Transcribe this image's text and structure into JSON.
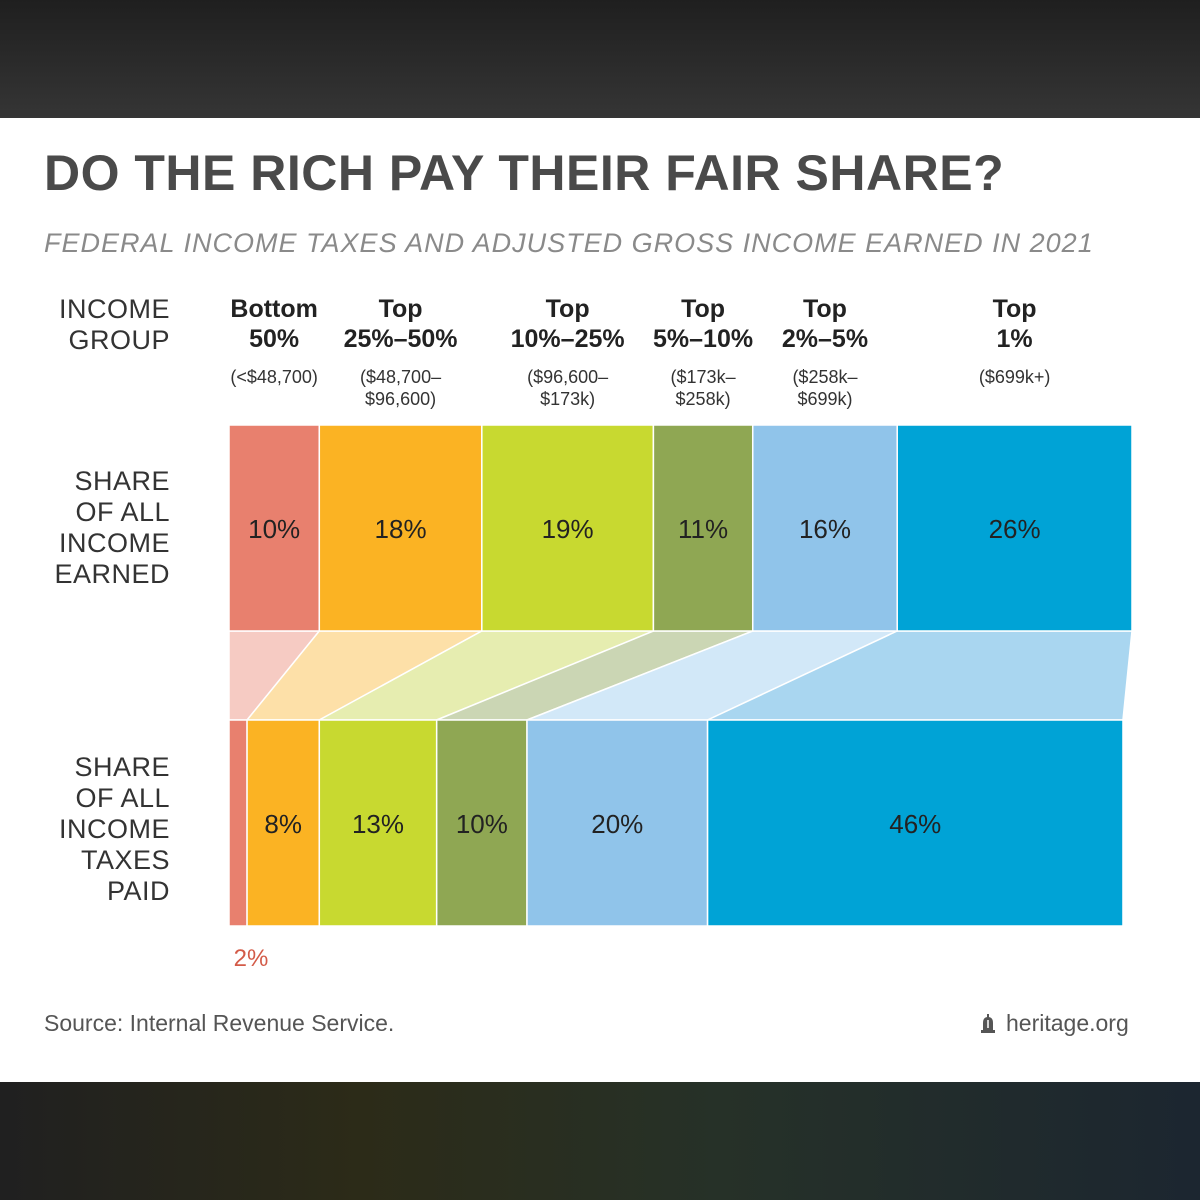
{
  "title": "DO THE RICH PAY THEIR FAIR SHARE?",
  "subtitle": "FEDERAL INCOME TAXES AND ADJUSTED GROSS INCOME EARNED IN 2021",
  "income_group_label": "INCOME\nGROUP",
  "row_income_label": "SHARE\nOF ALL\nINCOME\nEARNED",
  "row_taxes_label": "SHARE\nOF ALL\nINCOME\nTAXES\nPAID",
  "source": "Source: Internal Revenue Service.",
  "brand": "heritage.org",
  "chart_data": {
    "type": "bar",
    "stacked": true,
    "orientation": "horizontal",
    "categories": [
      "Bottom 50%",
      "Top 25%–50%",
      "Top 10%–25%",
      "Top 5%–10%",
      "Top 2%–5%",
      "Top 1%"
    ],
    "group_names": [
      "Bottom\n50%",
      "Top\n25%–50%",
      "Top\n10%–25%",
      "Top\n5%–10%",
      "Top\n2%–5%",
      "Top\n1%"
    ],
    "group_ranges": [
      "(<$48,700)",
      "($48,700–\n$96,600)",
      "($96,600–\n$173k)",
      "($173k–\n$258k)",
      "($258k–\n$699k)",
      "($699k+)"
    ],
    "colors": [
      "#e8806e",
      "#fbb323",
      "#c8d930",
      "#8fa753",
      "#90c4ea",
      "#00a3d6"
    ],
    "light_colors": [
      "#f6cbc3",
      "#fde0a8",
      "#e6edb0",
      "#cbd6b4",
      "#d2e8f8",
      "#a9d6f0"
    ],
    "series": [
      {
        "name": "Share of all income earned",
        "values": [
          10,
          18,
          19,
          11,
          16,
          26
        ],
        "labels": [
          "10%",
          "18%",
          "19%",
          "11%",
          "16%",
          "26%"
        ]
      },
      {
        "name": "Share of all income taxes paid",
        "values": [
          2,
          8,
          13,
          10,
          20,
          46
        ],
        "labels": [
          "2%",
          "8%",
          "13%",
          "10%",
          "20%",
          "46%"
        ]
      }
    ],
    "total": 100
  }
}
